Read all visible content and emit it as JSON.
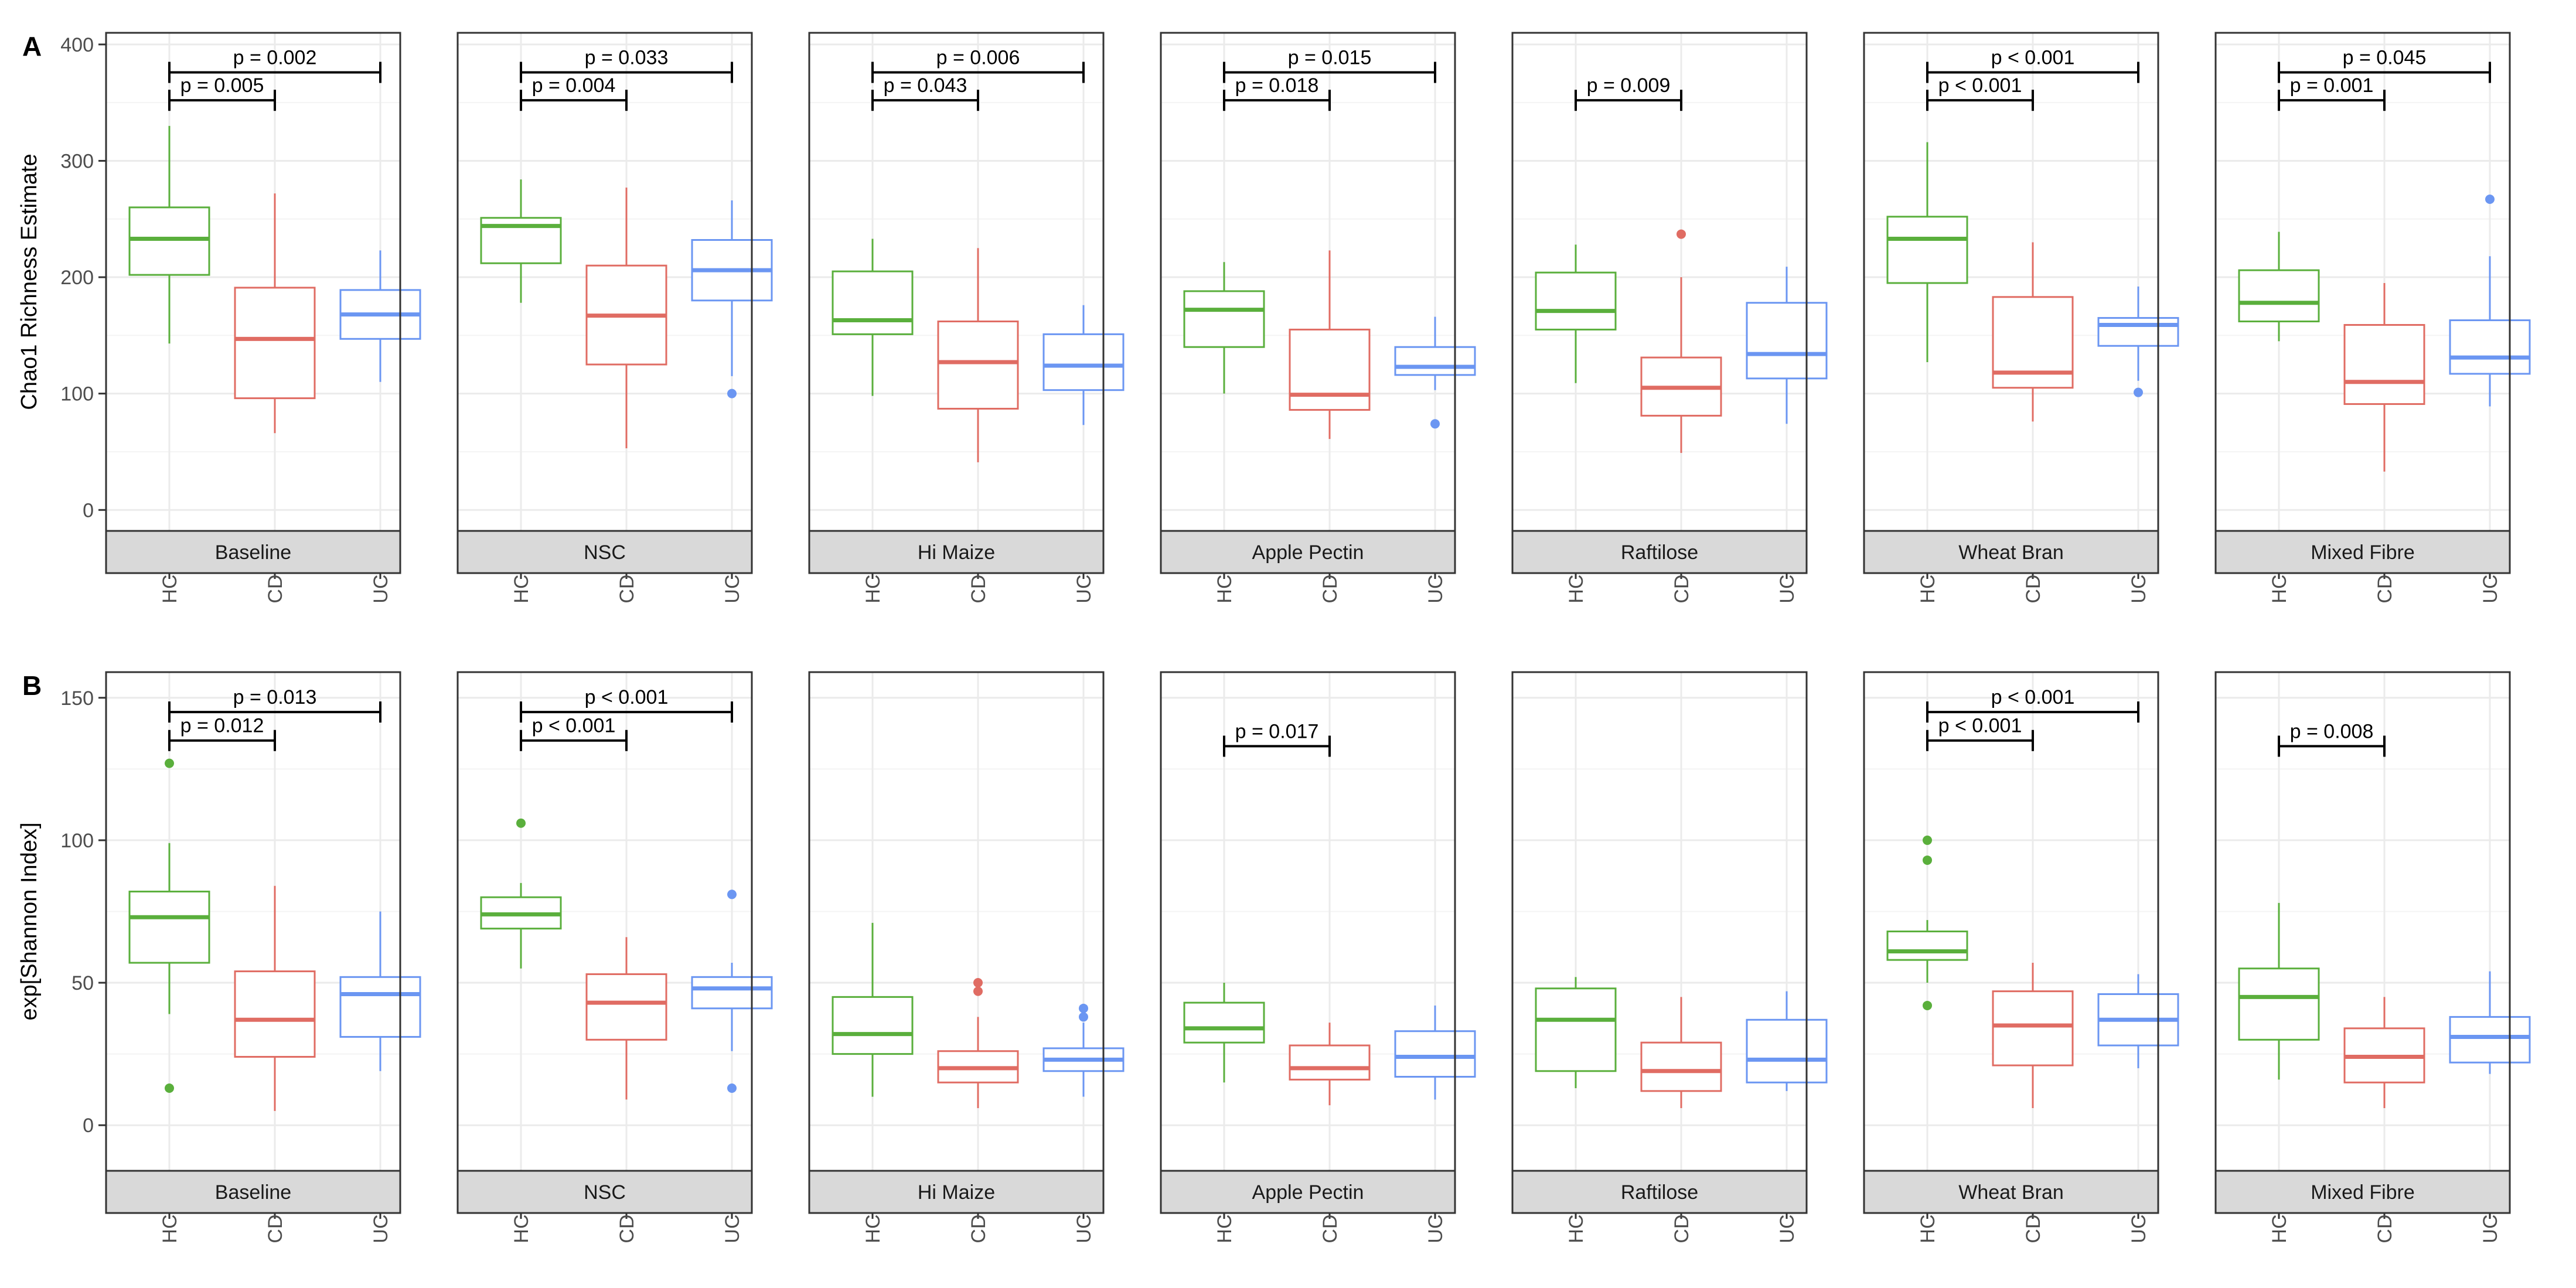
{
  "colors": {
    "HC": "#5aaf3c",
    "CD": "#e06c63",
    "UC": "#6b96f2",
    "strip": "#d9d9d9",
    "grid": "#ebebeb",
    "bracket": "#000000"
  },
  "chart_data": [
    {
      "panel_letter": "A",
      "type": "box",
      "ylabel": "Chao1 Richness Estimate",
      "ylim": [
        -18,
        410
      ],
      "yticks": [
        0,
        100,
        200,
        300,
        400
      ],
      "categories": [
        "HC",
        "CD",
        "UC"
      ],
      "grid": true,
      "facets": [
        {
          "label": "Baseline",
          "boxes": [
            {
              "group": "HC",
              "min": 143,
              "q1": 202,
              "median": 233,
              "q3": 260,
              "max": 330,
              "outliers": []
            },
            {
              "group": "CD",
              "min": 66,
              "q1": 96,
              "median": 147,
              "q3": 191,
              "max": 272,
              "outliers": []
            },
            {
              "group": "UC",
              "min": 110,
              "q1": 147,
              "median": 168,
              "q3": 189,
              "max": 223,
              "outliers": []
            }
          ],
          "brackets": [
            {
              "from": "HC",
              "to": "UC",
              "y": 376,
              "label": "p = 0.002"
            },
            {
              "from": "HC",
              "to": "CD",
              "y": 352,
              "label": "p = 0.005"
            }
          ]
        },
        {
          "label": "NSC",
          "boxes": [
            {
              "group": "HC",
              "min": 178,
              "q1": 212,
              "median": 244,
              "q3": 251,
              "max": 284,
              "outliers": []
            },
            {
              "group": "CD",
              "min": 53,
              "q1": 125,
              "median": 167,
              "q3": 210,
              "max": 277,
              "outliers": []
            },
            {
              "group": "UC",
              "min": 115,
              "q1": 180,
              "median": 206,
              "q3": 232,
              "max": 266,
              "outliers": [
                100
              ]
            }
          ],
          "brackets": [
            {
              "from": "HC",
              "to": "UC",
              "y": 376,
              "label": "p = 0.033"
            },
            {
              "from": "HC",
              "to": "CD",
              "y": 352,
              "label": "p = 0.004"
            }
          ]
        },
        {
          "label": "Hi Maize",
          "boxes": [
            {
              "group": "HC",
              "min": 98,
              "q1": 151,
              "median": 163,
              "q3": 205,
              "max": 233,
              "outliers": []
            },
            {
              "group": "CD",
              "min": 41,
              "q1": 87,
              "median": 127,
              "q3": 162,
              "max": 225,
              "outliers": []
            },
            {
              "group": "UC",
              "min": 73,
              "q1": 103,
              "median": 124,
              "q3": 151,
              "max": 176,
              "outliers": []
            }
          ],
          "brackets": [
            {
              "from": "HC",
              "to": "UC",
              "y": 376,
              "label": "p = 0.006"
            },
            {
              "from": "HC",
              "to": "CD",
              "y": 352,
              "label": "p = 0.043"
            }
          ]
        },
        {
          "label": "Apple Pectin",
          "boxes": [
            {
              "group": "HC",
              "min": 100,
              "q1": 140,
              "median": 172,
              "q3": 188,
              "max": 213,
              "outliers": []
            },
            {
              "group": "CD",
              "min": 61,
              "q1": 86,
              "median": 99,
              "q3": 155,
              "max": 223,
              "outliers": []
            },
            {
              "group": "UC",
              "min": 103,
              "q1": 116,
              "median": 123,
              "q3": 140,
              "max": 166,
              "outliers": [
                74
              ]
            }
          ],
          "brackets": [
            {
              "from": "HC",
              "to": "UC",
              "y": 376,
              "label": "p = 0.015"
            },
            {
              "from": "HC",
              "to": "CD",
              "y": 352,
              "label": "p = 0.018"
            }
          ]
        },
        {
          "label": "Raftilose",
          "boxes": [
            {
              "group": "HC",
              "min": 109,
              "q1": 155,
              "median": 171,
              "q3": 204,
              "max": 228,
              "outliers": []
            },
            {
              "group": "CD",
              "min": 49,
              "q1": 81,
              "median": 105,
              "q3": 131,
              "max": 200,
              "outliers": [
                237
              ]
            },
            {
              "group": "UC",
              "min": 74,
              "q1": 113,
              "median": 134,
              "q3": 178,
              "max": 209,
              "outliers": []
            }
          ],
          "brackets": [
            {
              "from": "HC",
              "to": "CD",
              "y": 352,
              "label": "p = 0.009"
            }
          ]
        },
        {
          "label": "Wheat Bran",
          "boxes": [
            {
              "group": "HC",
              "min": 127,
              "q1": 195,
              "median": 233,
              "q3": 252,
              "max": 316,
              "outliers": []
            },
            {
              "group": "CD",
              "min": 76,
              "q1": 105,
              "median": 118,
              "q3": 183,
              "max": 230,
              "outliers": []
            },
            {
              "group": "UC",
              "min": 111,
              "q1": 141,
              "median": 159,
              "q3": 165,
              "max": 192,
              "outliers": [
                101
              ]
            }
          ],
          "brackets": [
            {
              "from": "HC",
              "to": "UC",
              "y": 376,
              "label": "p < 0.001"
            },
            {
              "from": "HC",
              "to": "CD",
              "y": 352,
              "label": "p < 0.001"
            }
          ]
        },
        {
          "label": "Mixed Fibre",
          "boxes": [
            {
              "group": "HC",
              "min": 145,
              "q1": 162,
              "median": 178,
              "q3": 206,
              "max": 239,
              "outliers": []
            },
            {
              "group": "CD",
              "min": 33,
              "q1": 91,
              "median": 110,
              "q3": 159,
              "max": 195,
              "outliers": []
            },
            {
              "group": "UC",
              "min": 89,
              "q1": 117,
              "median": 131,
              "q3": 163,
              "max": 218,
              "outliers": [
                267
              ]
            }
          ],
          "brackets": [
            {
              "from": "HC",
              "to": "UC",
              "y": 376,
              "label": "p = 0.045"
            },
            {
              "from": "HC",
              "to": "CD",
              "y": 352,
              "label": "p = 0.001"
            }
          ]
        }
      ]
    },
    {
      "panel_letter": "B",
      "type": "box",
      "ylabel": "exp[Shannon Index]",
      "ylim": [
        -16,
        159
      ],
      "yticks": [
        0,
        50,
        100,
        150
      ],
      "categories": [
        "HC",
        "CD",
        "UC"
      ],
      "grid": true,
      "facets": [
        {
          "label": "Baseline",
          "boxes": [
            {
              "group": "HC",
              "min": 39,
              "q1": 57,
              "median": 73,
              "q3": 82,
              "max": 99,
              "outliers": [
                127,
                13
              ]
            },
            {
              "group": "CD",
              "min": 5,
              "q1": 24,
              "median": 37,
              "q3": 54,
              "max": 84,
              "outliers": []
            },
            {
              "group": "UC",
              "min": 19,
              "q1": 31,
              "median": 46,
              "q3": 52,
              "max": 75,
              "outliers": []
            }
          ],
          "brackets": [
            {
              "from": "HC",
              "to": "UC",
              "y": 145,
              "label": "p = 0.013"
            },
            {
              "from": "HC",
              "to": "CD",
              "y": 135,
              "label": "p = 0.012"
            }
          ]
        },
        {
          "label": "NSC",
          "boxes": [
            {
              "group": "HC",
              "min": 55,
              "q1": 69,
              "median": 74,
              "q3": 80,
              "max": 85,
              "outliers": [
                106
              ]
            },
            {
              "group": "CD",
              "min": 9,
              "q1": 30,
              "median": 43,
              "q3": 53,
              "max": 66,
              "outliers": []
            },
            {
              "group": "UC",
              "min": 26,
              "q1": 41,
              "median": 48,
              "q3": 52,
              "max": 57,
              "outliers": [
                81,
                13
              ]
            }
          ],
          "brackets": [
            {
              "from": "HC",
              "to": "UC",
              "y": 145,
              "label": "p < 0.001"
            },
            {
              "from": "HC",
              "to": "CD",
              "y": 135,
              "label": "p < 0.001"
            }
          ]
        },
        {
          "label": "Hi Maize",
          "boxes": [
            {
              "group": "HC",
              "min": 10,
              "q1": 25,
              "median": 32,
              "q3": 45,
              "max": 71,
              "outliers": []
            },
            {
              "group": "CD",
              "min": 6,
              "q1": 15,
              "median": 20,
              "q3": 26,
              "max": 38,
              "outliers": [
                47,
                50
              ]
            },
            {
              "group": "UC",
              "min": 10,
              "q1": 19,
              "median": 23,
              "q3": 27,
              "max": 36,
              "outliers": [
                38,
                41
              ]
            }
          ],
          "brackets": []
        },
        {
          "label": "Apple Pectin",
          "boxes": [
            {
              "group": "HC",
              "min": 15,
              "q1": 29,
              "median": 34,
              "q3": 43,
              "max": 50,
              "outliers": []
            },
            {
              "group": "CD",
              "min": 7,
              "q1": 16,
              "median": 20,
              "q3": 28,
              "max": 36,
              "outliers": []
            },
            {
              "group": "UC",
              "min": 9,
              "q1": 17,
              "median": 24,
              "q3": 33,
              "max": 42,
              "outliers": []
            }
          ],
          "brackets": [
            {
              "from": "HC",
              "to": "CD",
              "y": 133,
              "label": "p = 0.017"
            }
          ]
        },
        {
          "label": "Raftilose",
          "boxes": [
            {
              "group": "HC",
              "min": 13,
              "q1": 19,
              "median": 37,
              "q3": 48,
              "max": 52,
              "outliers": []
            },
            {
              "group": "CD",
              "min": 6,
              "q1": 12,
              "median": 19,
              "q3": 29,
              "max": 45,
              "outliers": []
            },
            {
              "group": "UC",
              "min": 12,
              "q1": 15,
              "median": 23,
              "q3": 37,
              "max": 47,
              "outliers": []
            }
          ],
          "brackets": []
        },
        {
          "label": "Wheat Bran",
          "boxes": [
            {
              "group": "HC",
              "min": 50,
              "q1": 58,
              "median": 61,
              "q3": 68,
              "max": 72,
              "outliers": [
                100,
                93,
                42
              ]
            },
            {
              "group": "CD",
              "min": 6,
              "q1": 21,
              "median": 35,
              "q3": 47,
              "max": 57,
              "outliers": []
            },
            {
              "group": "UC",
              "min": 20,
              "q1": 28,
              "median": 37,
              "q3": 46,
              "max": 53,
              "outliers": []
            }
          ],
          "brackets": [
            {
              "from": "HC",
              "to": "UC",
              "y": 145,
              "label": "p < 0.001"
            },
            {
              "from": "HC",
              "to": "CD",
              "y": 135,
              "label": "p < 0.001"
            }
          ]
        },
        {
          "label": "Mixed Fibre",
          "boxes": [
            {
              "group": "HC",
              "min": 16,
              "q1": 30,
              "median": 45,
              "q3": 55,
              "max": 78,
              "outliers": []
            },
            {
              "group": "CD",
              "min": 6,
              "q1": 15,
              "median": 24,
              "q3": 34,
              "max": 45,
              "outliers": []
            },
            {
              "group": "UC",
              "min": 18,
              "q1": 22,
              "median": 31,
              "q3": 38,
              "max": 54,
              "outliers": []
            }
          ],
          "brackets": [
            {
              "from": "HC",
              "to": "CD",
              "y": 133,
              "label": "p = 0.008"
            }
          ]
        }
      ]
    }
  ]
}
